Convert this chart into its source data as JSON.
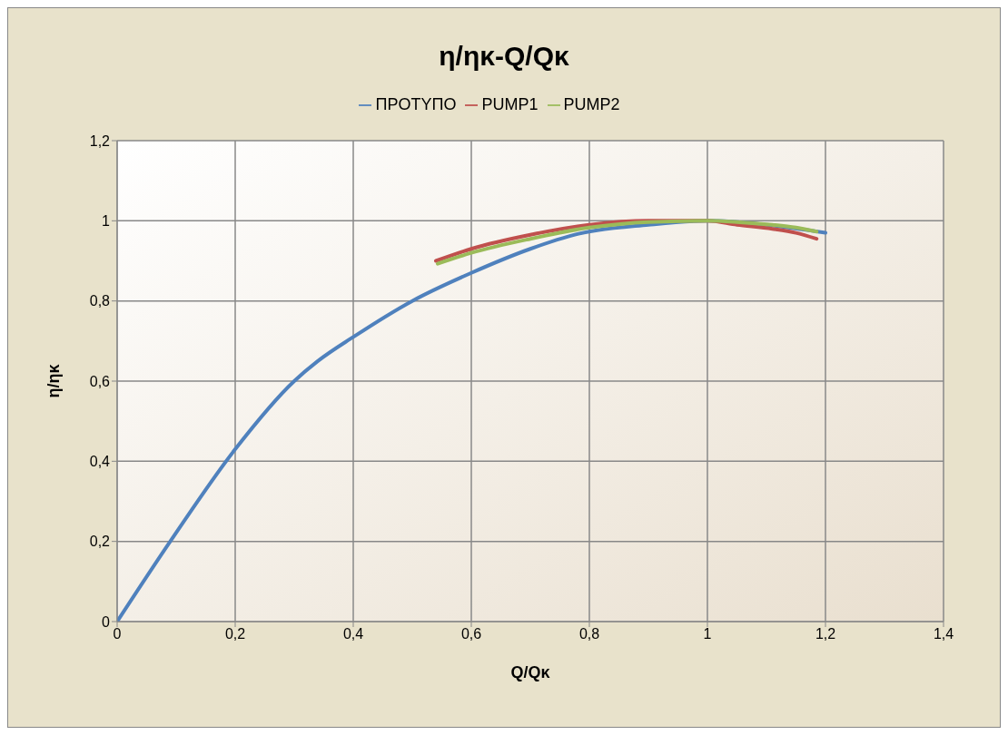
{
  "chart_data": {
    "type": "line",
    "title": "η/ηκ-Q/Qκ",
    "xlabel": "Q/Qκ",
    "ylabel": "η/ηκ",
    "xlim": [
      0,
      1.4
    ],
    "ylim": [
      0,
      1.2
    ],
    "xticks": [
      0,
      {
        "value": 0.2,
        "label": "0,2"
      },
      {
        "value": 0.4,
        "label": "0,4"
      },
      {
        "value": 0.6,
        "label": "0,6"
      },
      {
        "value": 0.8,
        "label": "0,8"
      },
      1,
      {
        "value": 1.2,
        "label": "1,2"
      },
      {
        "value": 1.4,
        "label": "1,4"
      }
    ],
    "yticks": [
      0,
      {
        "value": 0.2,
        "label": "0,2"
      },
      {
        "value": 0.4,
        "label": "0,4"
      },
      {
        "value": 0.6,
        "label": "0,6"
      },
      {
        "value": 0.8,
        "label": "0,8"
      },
      1,
      {
        "value": 1.2,
        "label": "1,2"
      }
    ],
    "grid": true,
    "legend": "top",
    "line_style": "solid",
    "series": [
      {
        "name": "ΠΡΟΤΥΠΟ",
        "color": "#4f81bd",
        "x": [
          0,
          0.09,
          0.2,
          0.3,
          0.34,
          0.4,
          0.5,
          0.6,
          0.7,
          0.78,
          0.9,
          1.0,
          1.1,
          1.2
        ],
        "values": [
          0,
          0.2,
          0.43,
          0.6,
          0.65,
          0.71,
          0.8,
          0.87,
          0.93,
          0.967,
          0.99,
          1.0,
          0.99,
          0.97
        ]
      },
      {
        "name": "PUMP1",
        "color": "#c0504d",
        "x": [
          0.54,
          0.6,
          0.7,
          0.8,
          0.9,
          0.95,
          1.0,
          1.05,
          1.11,
          1.15,
          1.185
        ],
        "values": [
          0.9,
          0.93,
          0.965,
          0.99,
          1.0,
          1.0,
          1.0,
          0.99,
          0.98,
          0.97,
          0.955
        ]
      },
      {
        "name": "PUMP2",
        "color": "#9bbb59",
        "x": [
          0.543,
          0.6,
          0.7,
          0.8,
          0.9,
          1.0,
          1.05,
          1.11,
          1.15,
          1.185
        ],
        "values": [
          0.893,
          0.92,
          0.955,
          0.983,
          0.997,
          1.0,
          0.997,
          0.99,
          0.983,
          0.973
        ]
      }
    ]
  }
}
